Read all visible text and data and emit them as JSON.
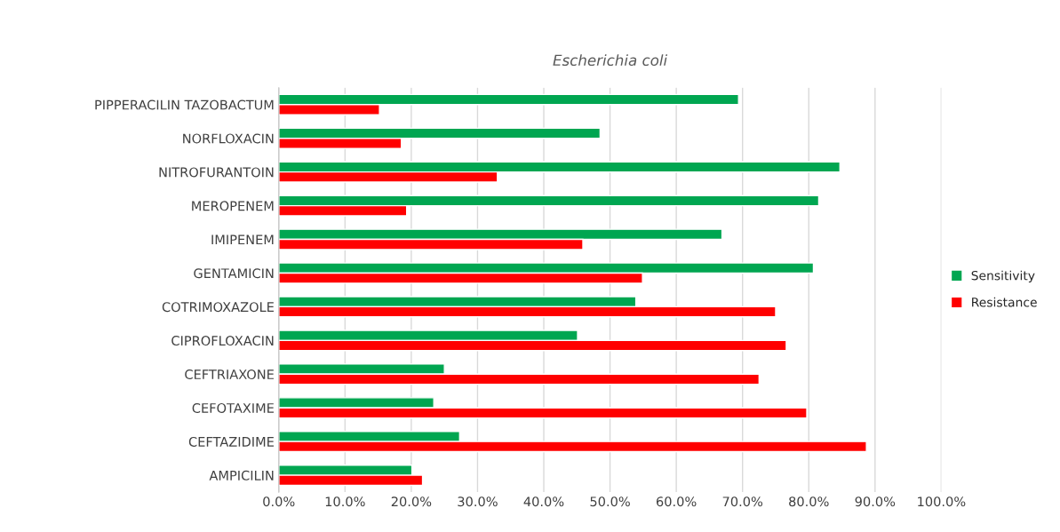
{
  "chart_data": {
    "type": "bar",
    "orientation": "horizontal",
    "title": "Escherichia coli",
    "categories": [
      "PIPPERACILIN TAZOBACTUM",
      "NORFLOXACIN",
      "NITROFURANTOIN",
      "MEROPENEM",
      "IMIPENEM",
      "GENTAMICIN",
      "COTRIMOXAZOLE",
      "CIPROFLOXACIN",
      "CEFTRIAXONE",
      "CEFOTAXIME",
      "CEFTAZIDIME",
      "AMPICILIN"
    ],
    "series": [
      {
        "name": "Sensitivity",
        "color": "#00a651",
        "values": [
          69.4,
          48.5,
          84.7,
          81.5,
          66.9,
          80.7,
          53.9,
          45.1,
          25.0,
          23.4,
          27.3,
          20.1
        ]
      },
      {
        "name": "Resistance",
        "color": "#ff0000",
        "values": [
          15.2,
          18.5,
          33.0,
          19.3,
          45.9,
          54.9,
          75.0,
          76.6,
          72.5,
          79.7,
          88.7,
          21.7
        ]
      }
    ],
    "xlim": [
      0,
      100
    ],
    "xticks": [
      {
        "value": 0,
        "label": "0.0%"
      },
      {
        "value": 10,
        "label": "10.0%"
      },
      {
        "value": 20,
        "label": "20.0%"
      },
      {
        "value": 30,
        "label": "30.0%"
      },
      {
        "value": 40,
        "label": "40.0%"
      },
      {
        "value": 50,
        "label": "50.0%"
      },
      {
        "value": 60,
        "label": "60.0%"
      },
      {
        "value": 70,
        "label": "70.0%"
      },
      {
        "value": 80,
        "label": "80.0%"
      },
      {
        "value": 90,
        "label": "90.0%"
      },
      {
        "value": 100,
        "label": "100.0%"
      }
    ],
    "grid": "x",
    "legend": "right"
  }
}
